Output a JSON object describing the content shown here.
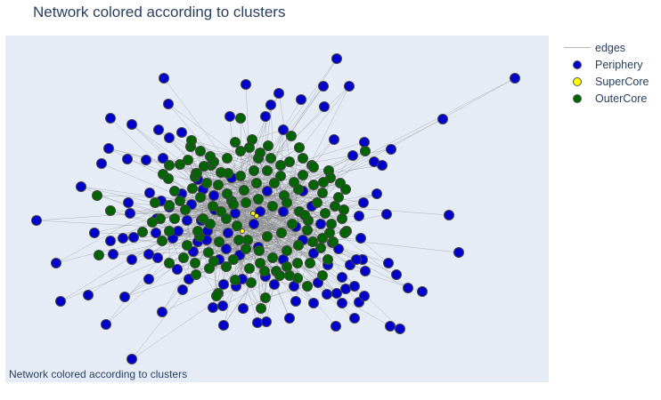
{
  "title": "Network colored according to clusters",
  "annotation": "Network colored according to clusters",
  "colors": {
    "plot_bg": "#e5ecf6",
    "edge": "#888888",
    "Periphery": "#0000cc",
    "SuperCore": "#ffff00",
    "OuterCore": "#006400",
    "marker_outline": "#444444"
  },
  "legend": {
    "position": "top-right",
    "items": [
      {
        "label": "edges",
        "kind": "line"
      },
      {
        "label": "Periphery",
        "kind": "marker"
      },
      {
        "label": "SuperCore",
        "kind": "marker"
      },
      {
        "label": "OuterCore",
        "kind": "marker"
      }
    ]
  },
  "chart_data": {
    "type": "scatter",
    "subtype": "network-graph",
    "title": "Network colored according to clusters",
    "xlabel": "",
    "ylabel": "",
    "axes_visible": false,
    "grid": false,
    "legend_position": "top-right",
    "series": [
      {
        "name": "edges",
        "mode": "lines"
      },
      {
        "name": "Periphery",
        "mode": "markers",
        "points": [
          [
            378,
            66
          ],
          [
            578,
            88
          ],
          [
            184,
            88
          ],
          [
            276,
            95
          ],
          [
            363,
            97
          ],
          [
            392,
            97
          ],
          [
            313,
            105
          ],
          [
            338,
            112
          ],
          [
            189,
            117
          ],
          [
            304,
            118
          ],
          [
            364,
            120
          ],
          [
            124,
            133
          ],
          [
            148,
            140
          ],
          [
            178,
            146
          ],
          [
            318,
            146
          ],
          [
            204,
            149
          ],
          [
            258,
            131
          ],
          [
            298,
            131
          ],
          [
            497,
            134
          ],
          [
            375,
            157
          ],
          [
            190,
            155
          ],
          [
            409,
            160
          ],
          [
            122,
            167
          ],
          [
            439,
            168
          ],
          [
            396,
            175
          ],
          [
            114,
            184
          ],
          [
            143,
            179
          ],
          [
            164,
            180
          ],
          [
            420,
            182
          ],
          [
            429,
            186
          ],
          [
            183,
            178
          ],
          [
            91,
            210
          ],
          [
            222,
            202
          ],
          [
            228,
            213
          ],
          [
            204,
            218
          ],
          [
            215,
            230
          ],
          [
            168,
            217
          ],
          [
            181,
            226
          ],
          [
            423,
            218
          ],
          [
            408,
            228
          ],
          [
            144,
            228
          ],
          [
            190,
            233
          ],
          [
            241,
            236
          ],
          [
            403,
            243
          ],
          [
            434,
            241
          ],
          [
            41,
            248
          ],
          [
            504,
            242
          ],
          [
            176,
            246
          ],
          [
            146,
            240
          ],
          [
            210,
            248
          ],
          [
            233,
            260
          ],
          [
            256,
            262
          ],
          [
            285,
            252
          ],
          [
            175,
            262
          ],
          [
            106,
            262
          ],
          [
            138,
            268
          ],
          [
            124,
            271
          ],
          [
            150,
            267
          ],
          [
            194,
            268
          ],
          [
            222,
            272
          ],
          [
            405,
            268
          ],
          [
            373,
            273
          ],
          [
            127,
            286
          ],
          [
            148,
            292
          ],
          [
            167,
            286
          ],
          [
            380,
            280
          ],
          [
            407,
            292
          ],
          [
            515,
            284
          ],
          [
            63,
            296
          ],
          [
            177,
            290
          ],
          [
            217,
            283
          ],
          [
            254,
            280
          ],
          [
            269,
            287
          ],
          [
            340,
            270
          ],
          [
            393,
            298
          ],
          [
            368,
            298
          ],
          [
            384,
            312
          ],
          [
            400,
            292
          ],
          [
            436,
            296
          ],
          [
            410,
            305
          ],
          [
            167,
            314
          ],
          [
            199,
            303
          ],
          [
            212,
            314
          ],
          [
            445,
            309
          ],
          [
            357,
            318
          ],
          [
            388,
            325
          ],
          [
            398,
            322
          ],
          [
            458,
            324
          ],
          [
            474,
            328
          ],
          [
            99,
            332
          ],
          [
            68,
            339
          ],
          [
            140,
            334
          ],
          [
            205,
            326
          ],
          [
            251,
            320
          ],
          [
            265,
            322
          ],
          [
            272,
            314
          ],
          [
            298,
            311
          ],
          [
            308,
            320
          ],
          [
            330,
            322
          ],
          [
            367,
            331
          ],
          [
            378,
            330
          ],
          [
            384,
            341
          ],
          [
            403,
            340
          ],
          [
            409,
            333
          ],
          [
            352,
            341
          ],
          [
            332,
            339
          ],
          [
            250,
            344
          ],
          [
            273,
            347
          ],
          [
            182,
            351
          ],
          [
            239,
            346
          ],
          [
            289,
            363
          ],
          [
            251,
            366
          ],
          [
            299,
            362
          ],
          [
            325,
            358
          ],
          [
            377,
            367
          ],
          [
            398,
            358
          ],
          [
            119,
            365
          ],
          [
            438,
            367
          ],
          [
            449,
            370
          ],
          [
            148,
            404
          ],
          [
            200,
            260
          ],
          [
            240,
            220
          ],
          [
            260,
            200
          ],
          [
            300,
            215
          ],
          [
            318,
            238
          ],
          [
            332,
            255
          ],
          [
            350,
            232
          ],
          [
            226,
            248
          ],
          [
            246,
            292
          ],
          [
            290,
            278
          ],
          [
            318,
            292
          ],
          [
            264,
            240
          ],
          [
            292,
            238
          ],
          [
            340,
            215
          ],
          [
            220,
            195
          ],
          [
            232,
            270
          ],
          [
            360,
            252
          ],
          [
            352,
            285
          ]
        ]
      },
      {
        "name": "SuperCore",
        "mode": "markers",
        "points": [
          [
            272,
            260
          ],
          [
            284,
            240
          ],
          [
            288,
            243
          ]
        ]
      },
      {
        "name": "OuterCore",
        "mode": "markers",
        "points": [
          [
            270,
            133
          ],
          [
            283,
            157
          ],
          [
            301,
            164
          ],
          [
            336,
            166
          ],
          [
            325,
            182
          ],
          [
            350,
            186
          ],
          [
            369,
            192
          ],
          [
            371,
            200
          ],
          [
            382,
            206
          ],
          [
            388,
            213
          ],
          [
            335,
            213
          ],
          [
            319,
            220
          ],
          [
            308,
            206
          ],
          [
            256,
            195
          ],
          [
            237,
            186
          ],
          [
            225,
            170
          ],
          [
            214,
            165
          ],
          [
            202,
            185
          ],
          [
            190,
            186
          ],
          [
            183,
            196
          ],
          [
            189,
            201
          ],
          [
            196,
            215
          ],
          [
            202,
            226
          ],
          [
            190,
            231
          ],
          [
            180,
            246
          ],
          [
            171,
            250
          ],
          [
            160,
            261
          ],
          [
            109,
            220
          ],
          [
            124,
            237
          ],
          [
            111,
            287
          ],
          [
            182,
            271
          ],
          [
            190,
            296
          ],
          [
            219,
            296
          ],
          [
            220,
            309
          ],
          [
            235,
            302
          ],
          [
            245,
            330
          ],
          [
            243,
            333
          ],
          [
            264,
            315
          ],
          [
            280,
            302
          ],
          [
            297,
            305
          ],
          [
            310,
            305
          ],
          [
            325,
            310
          ],
          [
            334,
            313
          ],
          [
            345,
            322
          ],
          [
            362,
            310
          ],
          [
            368,
            292
          ],
          [
            360,
            279
          ],
          [
            351,
            272
          ],
          [
            345,
            259
          ],
          [
            370,
            262
          ],
          [
            389,
            260
          ],
          [
            384,
            246
          ],
          [
            376,
            232
          ],
          [
            380,
            222
          ],
          [
            362,
            217
          ],
          [
            352,
            208
          ],
          [
            340,
            197
          ],
          [
            315,
            186
          ],
          [
            290,
            178
          ],
          [
            270,
            170
          ],
          [
            255,
            178
          ],
          [
            240,
            182
          ],
          [
            229,
            187
          ],
          [
            219,
            199
          ],
          [
            216,
            212
          ],
          [
            225,
            222
          ],
          [
            239,
            232
          ],
          [
            254,
            246
          ],
          [
            266,
            254
          ],
          [
            278,
            270
          ],
          [
            291,
            282
          ],
          [
            306,
            290
          ],
          [
            322,
            282
          ],
          [
            335,
            276
          ],
          [
            346,
            248
          ],
          [
            336,
            238
          ],
          [
            322,
            228
          ],
          [
            306,
            232
          ],
          [
            290,
            224
          ],
          [
            274,
            214
          ],
          [
            260,
            226
          ],
          [
            248,
            238
          ],
          [
            236,
            252
          ],
          [
            224,
            266
          ],
          [
            210,
            276
          ],
          [
            206,
            290
          ],
          [
            234,
            284
          ],
          [
            262,
            292
          ],
          [
            276,
            280
          ],
          [
            300,
            266
          ],
          [
            316,
            262
          ],
          [
            328,
            252
          ],
          [
            342,
            242
          ],
          [
            356,
            228
          ],
          [
            365,
            240
          ],
          [
            372,
            252
          ],
          [
            386,
            236
          ],
          [
            270,
            198
          ],
          [
            285,
            192
          ],
          [
            300,
            192
          ],
          [
            315,
            198
          ],
          [
            330,
            205
          ],
          [
            245,
            208
          ],
          [
            255,
            218
          ],
          [
            262,
            230
          ],
          [
            276,
            228
          ],
          [
            288,
            206
          ],
          [
            304,
            178
          ],
          [
            292,
            296
          ],
          [
            282,
            318
          ],
          [
            254,
            300
          ],
          [
            240,
            294
          ],
          [
            222,
            260
          ],
          [
            208,
            236
          ],
          [
            228,
            246
          ],
          [
            246,
            272
          ],
          [
            268,
            270
          ],
          [
            314,
            310
          ],
          [
            322,
            300
          ],
          [
            334,
            296
          ],
          [
            348,
            296
          ],
          [
            362,
            268
          ],
          [
            374,
            272
          ],
          [
            410,
            170
          ],
          [
            387,
            262
          ],
          [
            340,
            178
          ],
          [
            352,
            188
          ],
          [
            363,
            205
          ],
          [
            298,
            335
          ],
          [
            293,
            347
          ],
          [
            264,
            160
          ],
          [
            292,
            172
          ],
          [
            280,
            166
          ],
          [
            327,
            153
          ],
          [
            236,
            176
          ],
          [
            248,
            194
          ],
          [
            211,
            180
          ],
          [
            190,
            260
          ],
          [
            196,
            246
          ],
          [
            174,
            228
          ],
          [
            215,
            158
          ],
          [
            221,
            195
          ],
          [
            232,
            206
          ]
        ]
      }
    ]
  }
}
